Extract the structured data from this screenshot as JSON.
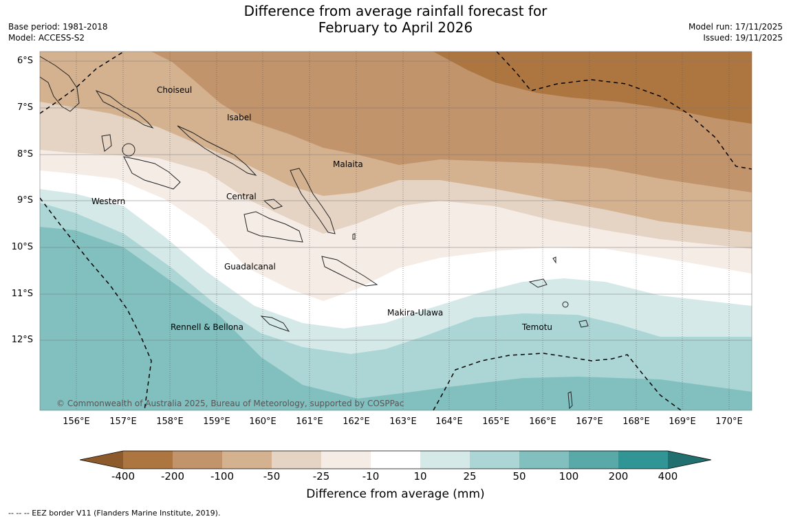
{
  "title": {
    "line1": "Difference from average rainfall forecast for",
    "line2": "February to April 2026"
  },
  "meta": {
    "base_period": "Base period: 1981-2018",
    "model": "Model: ACCESS-S2",
    "model_run": "Model run: 17/11/2025",
    "issued": "Issued: 19/11/2025"
  },
  "axes": {
    "latitudes": [
      "6°S",
      "7°S",
      "8°S",
      "9°S",
      "10°S",
      "11°S",
      "12°S"
    ],
    "longitudes": [
      "156°E",
      "157°E",
      "158°E",
      "159°E",
      "160°E",
      "161°E",
      "162°E",
      "163°E",
      "164°E",
      "165°E",
      "166°E",
      "167°E",
      "168°E",
      "169°E",
      "170°E"
    ]
  },
  "places": [
    "Choiseul",
    "Isabel",
    "Malaita",
    "Western",
    "Central",
    "Guadalcanal",
    "Makira-Ulawa",
    "Temotu",
    "Rennell & Bellona"
  ],
  "copyright": "© Commonwealth of Australia 2025, Bureau of Meteorology, supported by COSPPac",
  "colorbar": {
    "ticks": [
      "-400",
      "-200",
      "-100",
      "-50",
      "-25",
      "-10",
      "10",
      "25",
      "50",
      "100",
      "200",
      "400"
    ],
    "colors": [
      "#8c5a2b",
      "#ad7640",
      "#c2946b",
      "#d4b290",
      "#e5d3c3",
      "#f5ece6",
      "#ffffff",
      "#d5e9e9",
      "#acd5d5",
      "#82c0c0",
      "#5aa9a9",
      "#319595",
      "#226f6f"
    ],
    "title": "Difference from average (mm)"
  },
  "footnote": "--  --  -- EEZ border V11 (Flanders Marine Institute, 2019)."
}
